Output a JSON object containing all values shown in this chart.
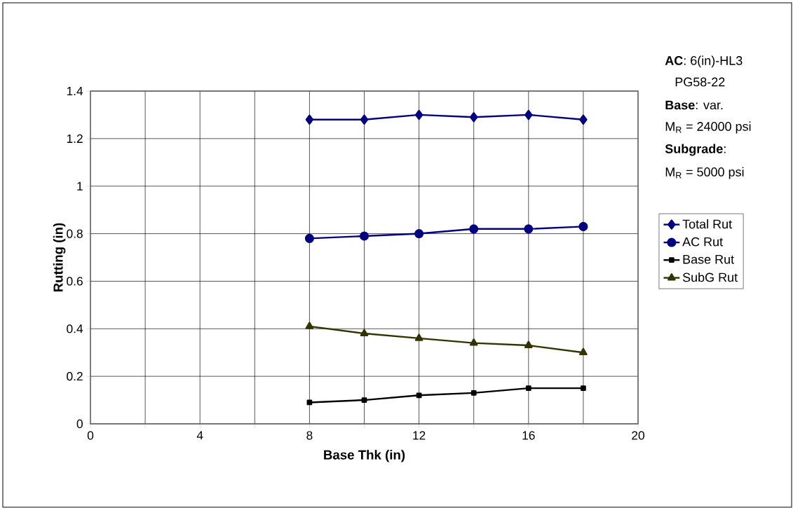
{
  "chart_data": {
    "type": "line",
    "xlabel": "Base Thk (in)",
    "ylabel": "Rutting (in)",
    "x": [
      8,
      10,
      12,
      14,
      16,
      18
    ],
    "series": [
      {
        "name": "Total Rut",
        "color": "#000080",
        "marker": "diamond",
        "values": [
          1.28,
          1.28,
          1.3,
          1.29,
          1.3,
          1.28
        ]
      },
      {
        "name": "AC Rut",
        "color": "#000080",
        "marker": "circle",
        "values": [
          0.78,
          0.79,
          0.8,
          0.82,
          0.82,
          0.83
        ]
      },
      {
        "name": "Base Rut",
        "color": "#000000",
        "marker": "square",
        "values": [
          0.09,
          0.1,
          0.12,
          0.13,
          0.15,
          0.15
        ]
      },
      {
        "name": "SubG Rut",
        "color": "#333300",
        "marker": "triangle",
        "values": [
          0.41,
          0.38,
          0.36,
          0.34,
          0.33,
          0.3
        ]
      }
    ],
    "xlim": [
      0,
      20
    ],
    "xticks": [
      0,
      {
        "value": 2,
        "label": null
      },
      4,
      {
        "value": 6,
        "label": null
      },
      8,
      {
        "value": 10,
        "label": null
      },
      12,
      {
        "value": 14,
        "label": null
      },
      16,
      {
        "value": 18,
        "label": null
      },
      20
    ],
    "ylim": [
      0,
      1.4
    ],
    "yticks": [
      0,
      0.2,
      0.4,
      0.6,
      0.8,
      1,
      1.2,
      1.4
    ],
    "grid": true,
    "legend": "right",
    "annotations": [
      "**AC**: 6(in)-HL3",
      "PG58-22",
      "**Base**: var.",
      "M$_{R}$ = 24000 psi",
      "**Subgrade**:",
      "M$_{R}$ = 5000 psi"
    ]
  }
}
